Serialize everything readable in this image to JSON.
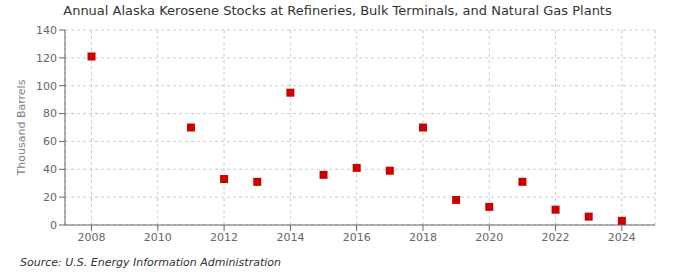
{
  "chart_data": {
    "type": "scatter",
    "title": "Annual Alaska Kerosene Stocks at Refineries, Bulk Terminals, and Natural Gas Plants",
    "ylabel": "Thousand Barrels",
    "source": "Source: U.S. Energy Information Administration",
    "x": [
      2008,
      2011,
      2012,
      2013,
      2014,
      2015,
      2016,
      2017,
      2018,
      2019,
      2020,
      2021,
      2022,
      2023,
      2024
    ],
    "values": [
      121,
      70,
      33,
      31,
      95,
      36,
      41,
      39,
      70,
      18,
      13,
      31,
      11,
      6,
      3
    ],
    "color": "#cc0000",
    "marker": "square",
    "xlim": [
      2007.2,
      2025.0
    ],
    "ylim": [
      0,
      140
    ],
    "xticks": [
      2008,
      2010,
      2012,
      2014,
      2016,
      2018,
      2020,
      2022,
      2024
    ],
    "yticks": [
      0,
      20,
      40,
      60,
      80,
      100,
      120,
      140
    ],
    "grid": true
  }
}
